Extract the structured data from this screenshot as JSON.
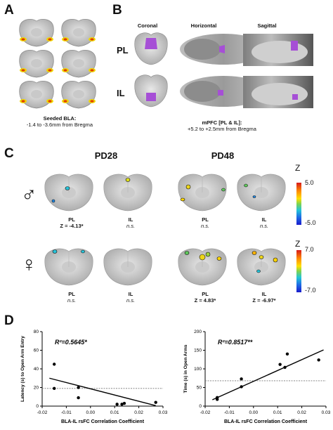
{
  "panelA": {
    "letter": "A",
    "caption_line1": "Seeded BLA:",
    "caption_line2": "-1.4 to -3.6mm from Bregma"
  },
  "panelB": {
    "letter": "B",
    "col_headers": [
      "Coronal",
      "Horizontal",
      "Sagittal"
    ],
    "row_labels": [
      "PL",
      "IL"
    ],
    "caption_line1": "mPFC [PL & IL]:",
    "caption_line2": "+5.2 to +2.5mm from Bregma"
  },
  "panelC": {
    "letter": "C",
    "age_headers": [
      "PD28",
      "PD48"
    ],
    "male_symbol": "♂",
    "female_symbol": "♀",
    "male_labels": [
      {
        "region": "PL",
        "stat": "Z = -4.13*"
      },
      {
        "region": "IL",
        "stat": "n.s."
      },
      {
        "region": "PL",
        "stat": "n.s."
      },
      {
        "region": "IL",
        "stat": "n.s."
      }
    ],
    "female_labels": [
      {
        "region": "PL",
        "stat": "n.s."
      },
      {
        "region": "IL",
        "stat": "n.s."
      },
      {
        "region": "PL",
        "stat": "Z = 4.83*"
      },
      {
        "region": "IL",
        "stat": "Z = -6.97*"
      }
    ],
    "colorbar_male": {
      "label": "Z",
      "max": "5.0",
      "min": "-5.0"
    },
    "colorbar_female": {
      "label": "Z",
      "max": "7.0",
      "min": "-7.0"
    }
  },
  "panelD": {
    "letter": "D",
    "colors": {
      "line": "#000000",
      "ref_line": "#777777",
      "marker": "#000000"
    }
  },
  "chart_data": [
    {
      "type": "scatter",
      "title": "",
      "annotation": "R²=0.5645*",
      "xlabel": "BLA-IL rsFC Correlation Coefficient",
      "ylabel": "Latency (s) to Open Arm Entry",
      "xlim": [
        -0.02,
        0.03
      ],
      "ylim": [
        0,
        80
      ],
      "xticks": [
        "-0.02",
        "-0.01",
        "0.00",
        "0.01",
        "0.02",
        "0.03"
      ],
      "yticks": [
        "0",
        "20",
        "40",
        "60",
        "80"
      ],
      "reference_line_y": 19,
      "fit": {
        "x": [
          -0.017,
          0.027
        ],
        "y": [
          30,
          0.5
        ]
      },
      "points": [
        {
          "x": -0.015,
          "y": 45
        },
        {
          "x": -0.015,
          "y": 19
        },
        {
          "x": -0.005,
          "y": 20
        },
        {
          "x": -0.005,
          "y": 9
        },
        {
          "x": 0.011,
          "y": 2
        },
        {
          "x": 0.013,
          "y": 2
        },
        {
          "x": 0.014,
          "y": 3
        },
        {
          "x": 0.027,
          "y": 4
        }
      ]
    },
    {
      "type": "scatter",
      "title": "",
      "annotation": "R²=0.8517**",
      "xlabel": "BLA-IL rsFC Correlation Coefficient",
      "ylabel": "Time (s) in Open Arms",
      "xlim": [
        -0.02,
        0.03
      ],
      "ylim": [
        0,
        200
      ],
      "xticks": [
        "-0.02",
        "-0.01",
        "0.00",
        "0.01",
        "0.02",
        "0.03"
      ],
      "yticks": [
        "0",
        "50",
        "100",
        "150",
        "200"
      ],
      "reference_line_y": 68,
      "fit": {
        "x": [
          -0.017,
          0.029
        ],
        "y": [
          17,
          151
        ]
      },
      "points": [
        {
          "x": -0.015,
          "y": 18
        },
        {
          "x": -0.015,
          "y": 23
        },
        {
          "x": -0.005,
          "y": 52
        },
        {
          "x": -0.005,
          "y": 73
        },
        {
          "x": 0.011,
          "y": 112
        },
        {
          "x": 0.013,
          "y": 104
        },
        {
          "x": 0.014,
          "y": 140
        },
        {
          "x": 0.027,
          "y": 124
        }
      ]
    }
  ]
}
